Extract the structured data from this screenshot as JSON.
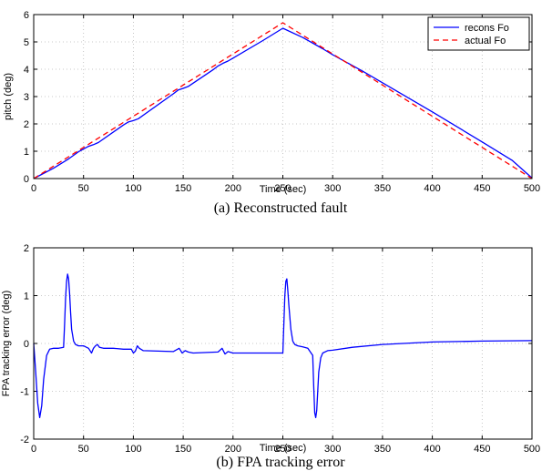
{
  "chart_data": [
    {
      "type": "line",
      "caption": "(a)  Reconstructed fault",
      "xlabel": "Time (sec)",
      "ylabel": "pitch (deg)",
      "xlim": [
        0,
        500
      ],
      "ylim": [
        0,
        6
      ],
      "xticks": [
        0,
        50,
        100,
        150,
        200,
        250,
        300,
        350,
        400,
        450,
        500
      ],
      "yticks": [
        0,
        1,
        2,
        3,
        4,
        5,
        6
      ],
      "grid": true,
      "legend_position": "top-right",
      "series": [
        {
          "name": "recons Fo",
          "color": "#0000ff",
          "style": "solid",
          "x": [
            0,
            20,
            35,
            45,
            55,
            60,
            65,
            90,
            95,
            100,
            105,
            140,
            145,
            150,
            155,
            180,
            185,
            190,
            195,
            230,
            250,
            270,
            290,
            300,
            330,
            400,
            450,
            480,
            500
          ],
          "y": [
            0,
            0.38,
            0.72,
            0.98,
            1.18,
            1.24,
            1.32,
            1.96,
            2.07,
            2.12,
            2.19,
            3.1,
            3.24,
            3.3,
            3.37,
            3.98,
            4.12,
            4.22,
            4.3,
            5.05,
            5.5,
            5.16,
            4.75,
            4.53,
            3.93,
            2.44,
            1.34,
            0.67,
            0.02
          ]
        },
        {
          "name": "actual Fo",
          "color": "#ff0000",
          "style": "dashed",
          "x": [
            0,
            250,
            500
          ],
          "y": [
            0,
            5.7,
            0
          ]
        }
      ]
    },
    {
      "type": "line",
      "caption": "(b)  FPA tracking error",
      "xlabel": "Time (sec)",
      "ylabel": "FPA tracking error (deg)",
      "xlim": [
        0,
        500
      ],
      "ylim": [
        -2,
        2
      ],
      "xticks": [
        0,
        50,
        100,
        150,
        200,
        250,
        300,
        350,
        400,
        450,
        500
      ],
      "yticks": [
        -2,
        -1,
        0,
        1,
        2
      ],
      "grid": true,
      "series": [
        {
          "name": "",
          "color": "#0000ff",
          "style": "solid",
          "x": [
            0,
            2,
            4,
            6,
            8,
            10,
            13,
            16,
            20,
            25,
            30,
            31,
            32,
            33,
            34,
            35,
            36,
            37,
            38,
            40,
            42,
            45,
            50,
            55,
            58,
            60,
            62,
            64,
            66,
            70,
            80,
            90,
            98,
            100,
            102,
            104,
            106,
            110,
            140,
            146,
            149,
            152,
            155,
            160,
            185,
            189,
            192,
            195,
            200,
            210,
            240,
            250,
            251,
            252,
            253,
            254,
            255,
            256,
            258,
            260,
            262,
            265,
            270,
            275,
            280,
            281,
            282,
            283,
            284,
            285,
            286,
            288,
            290,
            295,
            300,
            320,
            350,
            400,
            450,
            500
          ],
          "y": [
            0,
            -0.6,
            -1.25,
            -1.55,
            -1.3,
            -0.75,
            -0.25,
            -0.12,
            -0.1,
            -0.1,
            -0.08,
            0.4,
            0.95,
            1.3,
            1.45,
            1.35,
            1.05,
            0.65,
            0.3,
            0.05,
            -0.02,
            -0.05,
            -0.05,
            -0.1,
            -0.2,
            -0.1,
            -0.05,
            -0.02,
            -0.08,
            -0.1,
            -0.1,
            -0.12,
            -0.12,
            -0.2,
            -0.16,
            -0.05,
            -0.1,
            -0.15,
            -0.17,
            -0.1,
            -0.2,
            -0.15,
            -0.18,
            -0.2,
            -0.18,
            -0.1,
            -0.22,
            -0.17,
            -0.2,
            -0.2,
            -0.2,
            -0.2,
            0.4,
            1.0,
            1.3,
            1.35,
            1.1,
            0.8,
            0.3,
            0.05,
            -0.02,
            -0.05,
            -0.07,
            -0.1,
            -0.25,
            -0.9,
            -1.45,
            -1.55,
            -1.4,
            -1.0,
            -0.6,
            -0.3,
            -0.2,
            -0.15,
            -0.14,
            -0.08,
            -0.02,
            0.03,
            0.05,
            0.06
          ]
        }
      ]
    }
  ]
}
